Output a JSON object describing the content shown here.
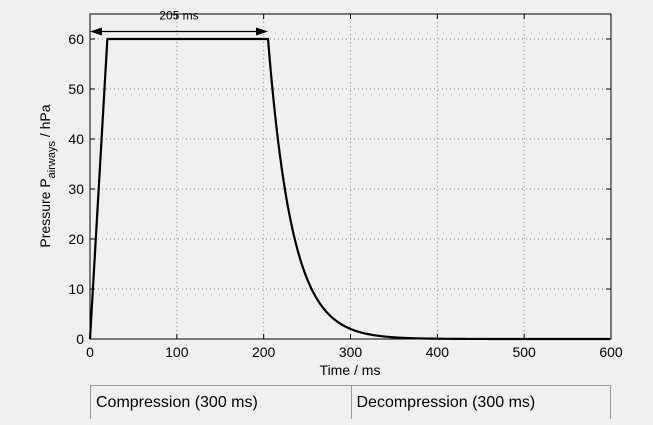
{
  "chart_data": {
    "type": "line",
    "title": "",
    "xlabel": "Time / ms",
    "ylabel_main": "Pressure P",
    "ylabel_subscript": "airways",
    "ylabel_unit": " / hPa",
    "xlim": [
      0,
      600
    ],
    "ylim": [
      0,
      65
    ],
    "x_ticks": [
      0,
      100,
      200,
      300,
      400,
      500,
      600
    ],
    "y_ticks": [
      0,
      10,
      20,
      30,
      40,
      50,
      60
    ],
    "x_tick_labels": [
      "0",
      "100",
      "200",
      "300",
      "400",
      "500",
      "600"
    ],
    "y_tick_labels": [
      "0",
      "10",
      "20",
      "30",
      "40",
      "50",
      "60"
    ],
    "grid": true,
    "series": [
      {
        "name": "Pressure",
        "segments": [
          {
            "kind": "linear",
            "points": [
              [
                0,
                0
              ],
              [
                20,
                60
              ],
              [
                205,
                60
              ]
            ]
          },
          {
            "kind": "exp_decay",
            "x_start": 205,
            "x_end": 600,
            "y_start": 60,
            "tau_ms": 28
          }
        ]
      }
    ],
    "annotations": [
      {
        "label": "205 ms",
        "x_from": 0,
        "x_to": 205,
        "y": 61.5,
        "style": "double-arrow"
      }
    ]
  },
  "phases": [
    {
      "label": "Compression (300 ms)",
      "duration_ms": 300
    },
    {
      "label": "Decompression (300 ms)",
      "duration_ms": 300
    }
  ]
}
